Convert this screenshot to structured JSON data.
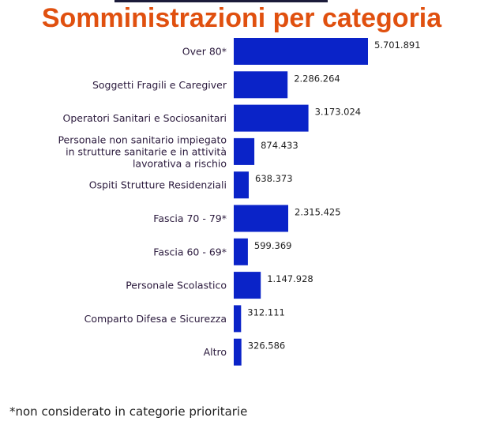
{
  "chart_data": {
    "type": "bar",
    "orientation": "horizontal",
    "title": "Somministrazioni per categoria",
    "categories": [
      [
        "Over 80*"
      ],
      [
        "Soggetti Fragili e Caregiver"
      ],
      [
        "Operatori Sanitari e Sociosanitari"
      ],
      [
        "Personale non sanitario impiegato",
        "in strutture sanitarie e in attività",
        "lavorativa a rischio"
      ],
      [
        "Ospiti Strutture Residenziali"
      ],
      [
        "Fascia 70 - 79*"
      ],
      [
        "Fascia 60 - 69*"
      ],
      [
        "Personale Scolastico"
      ],
      [
        "Comparto Difesa e Sicurezza"
      ],
      [
        "Altro"
      ]
    ],
    "values": [
      5701891,
      2286264,
      3173024,
      874433,
      638373,
      2315425,
      599369,
      1147928,
      312111,
      326586
    ],
    "value_labels": [
      "5.701.891",
      "2.286.264",
      "3.173.024",
      "874.433",
      "638.373",
      "2.315.425",
      "599.369",
      "1.147.928",
      "312.111",
      "326.586"
    ],
    "xlim": [
      0,
      5701891
    ],
    "grid": false,
    "bar_color": "#0a23c8",
    "title_color": "#e0500f"
  },
  "footnote": "*non considerato in categorie prioritarie"
}
